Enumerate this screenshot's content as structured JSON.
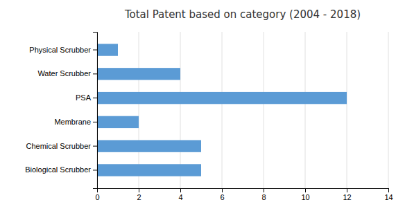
{
  "chart_data": {
    "type": "bar",
    "orientation": "horizontal",
    "title": "Total Patent based on category (2004 - 2018)",
    "categories": [
      "Biological Scrubber",
      "Chemical Scrubber",
      "Membrane",
      "PSA",
      "Water Scrubber",
      "Physical Scrubber"
    ],
    "values": [
      5,
      5,
      2,
      12,
      4,
      1
    ],
    "color": "#5B9BD5",
    "xlim": [
      0,
      14
    ],
    "xticks": [
      0,
      2,
      4,
      6,
      8,
      10,
      12,
      14
    ],
    "grid": true
  }
}
